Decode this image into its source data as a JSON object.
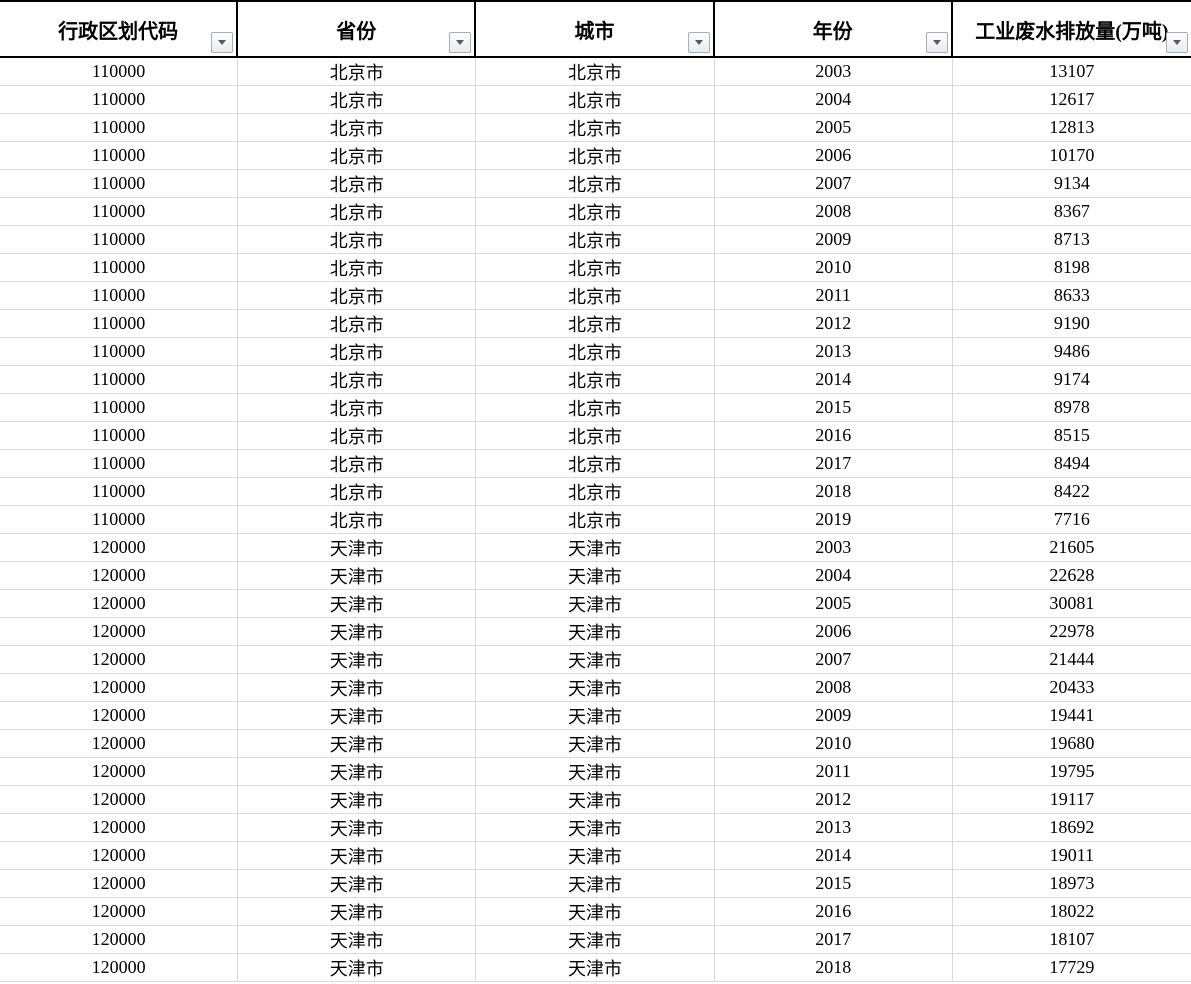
{
  "header": {
    "columns": [
      {
        "label": "行政区划代码"
      },
      {
        "label": "省份"
      },
      {
        "label": "城市"
      },
      {
        "label": "年份"
      },
      {
        "label": "工业废水排放量(万吨)"
      }
    ],
    "filter_icon": "chevron-down"
  },
  "table": {
    "field_names": [
      "code",
      "province",
      "city",
      "year",
      "value"
    ],
    "rows": [
      [
        "110000",
        "北京市",
        "北京市",
        "2003",
        "13107"
      ],
      [
        "110000",
        "北京市",
        "北京市",
        "2004",
        "12617"
      ],
      [
        "110000",
        "北京市",
        "北京市",
        "2005",
        "12813"
      ],
      [
        "110000",
        "北京市",
        "北京市",
        "2006",
        "10170"
      ],
      [
        "110000",
        "北京市",
        "北京市",
        "2007",
        "9134"
      ],
      [
        "110000",
        "北京市",
        "北京市",
        "2008",
        "8367"
      ],
      [
        "110000",
        "北京市",
        "北京市",
        "2009",
        "8713"
      ],
      [
        "110000",
        "北京市",
        "北京市",
        "2010",
        "8198"
      ],
      [
        "110000",
        "北京市",
        "北京市",
        "2011",
        "8633"
      ],
      [
        "110000",
        "北京市",
        "北京市",
        "2012",
        "9190"
      ],
      [
        "110000",
        "北京市",
        "北京市",
        "2013",
        "9486"
      ],
      [
        "110000",
        "北京市",
        "北京市",
        "2014",
        "9174"
      ],
      [
        "110000",
        "北京市",
        "北京市",
        "2015",
        "8978"
      ],
      [
        "110000",
        "北京市",
        "北京市",
        "2016",
        "8515"
      ],
      [
        "110000",
        "北京市",
        "北京市",
        "2017",
        "8494"
      ],
      [
        "110000",
        "北京市",
        "北京市",
        "2018",
        "8422"
      ],
      [
        "110000",
        "北京市",
        "北京市",
        "2019",
        "7716"
      ],
      [
        "120000",
        "天津市",
        "天津市",
        "2003",
        "21605"
      ],
      [
        "120000",
        "天津市",
        "天津市",
        "2004",
        "22628"
      ],
      [
        "120000",
        "天津市",
        "天津市",
        "2005",
        "30081"
      ],
      [
        "120000",
        "天津市",
        "天津市",
        "2006",
        "22978"
      ],
      [
        "120000",
        "天津市",
        "天津市",
        "2007",
        "21444"
      ],
      [
        "120000",
        "天津市",
        "天津市",
        "2008",
        "20433"
      ],
      [
        "120000",
        "天津市",
        "天津市",
        "2009",
        "19441"
      ],
      [
        "120000",
        "天津市",
        "天津市",
        "2010",
        "19680"
      ],
      [
        "120000",
        "天津市",
        "天津市",
        "2011",
        "19795"
      ],
      [
        "120000",
        "天津市",
        "天津市",
        "2012",
        "19117"
      ],
      [
        "120000",
        "天津市",
        "天津市",
        "2013",
        "18692"
      ],
      [
        "120000",
        "天津市",
        "天津市",
        "2014",
        "19011"
      ],
      [
        "120000",
        "天津市",
        "天津市",
        "2015",
        "18973"
      ],
      [
        "120000",
        "天津市",
        "天津市",
        "2016",
        "18022"
      ],
      [
        "120000",
        "天津市",
        "天津市",
        "2017",
        "18107"
      ],
      [
        "120000",
        "天津市",
        "天津市",
        "2018",
        "17729"
      ]
    ]
  },
  "colors": {
    "gridline": "#d9d9d9",
    "header_border": "#000000",
    "text": "#000000",
    "filter_button_border": "#a9afb8",
    "filter_button_bg": "#f3f5f8"
  }
}
